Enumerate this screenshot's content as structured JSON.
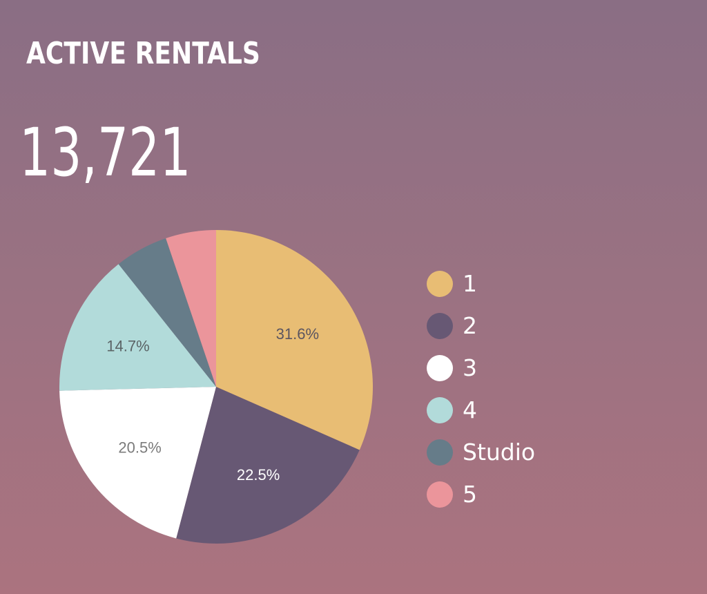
{
  "title": "ACTIVE RENTALS",
  "metric": {
    "value": "13,721"
  },
  "chart_data": {
    "type": "pie",
    "slices": [
      {
        "label": "1",
        "value": 31.6,
        "display": "31.6%",
        "color": "#e8bd74",
        "text_color": "#5b5560"
      },
      {
        "label": "2",
        "value": 22.5,
        "display": "22.5%",
        "color": "#675874",
        "text_color": "#ffffff"
      },
      {
        "label": "3",
        "value": 20.5,
        "display": "20.5%",
        "color": "#ffffff",
        "text_color": "#7b7b7b"
      },
      {
        "label": "4",
        "value": 14.7,
        "display": "14.7%",
        "color": "#b2dbda",
        "text_color": "#5b6466"
      },
      {
        "label": "Studio",
        "value": 5.5,
        "display": "",
        "color": "#667c89",
        "text_color": "#ffffff"
      },
      {
        "label": "5",
        "value": 5.2,
        "display": "",
        "color": "#eb959b",
        "text_color": "#ffffff"
      }
    ],
    "legend_position": "right"
  }
}
